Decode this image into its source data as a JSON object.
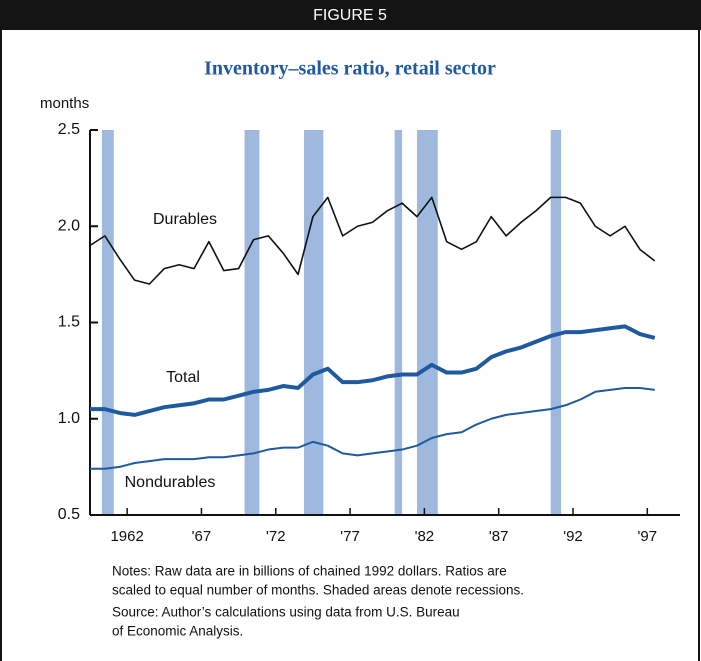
{
  "chart_data": {
    "type": "line",
    "header": "FIGURE 5",
    "title": "Inventory–sales ratio, retail sector",
    "y_label": "months",
    "x": [
      1959.5,
      1960.5,
      1961.5,
      1962.5,
      1963.5,
      1964.5,
      1965.5,
      1966.5,
      1967.5,
      1968.5,
      1969.5,
      1970.5,
      1971.5,
      1972.5,
      1973.5,
      1974.5,
      1975.5,
      1976.5,
      1977.5,
      1978.5,
      1979.5,
      1980.5,
      1981.5,
      1982.5,
      1983.5,
      1984.5,
      1985.5,
      1986.5,
      1987.5,
      1988.5,
      1989.5,
      1990.5,
      1991.5,
      1992.5,
      1993.5,
      1994.5,
      1995.5,
      1996.5,
      1997.5
    ],
    "series": [
      {
        "name": "Durables",
        "color": "#111111",
        "width": 1.6,
        "values": [
          1.9,
          1.95,
          1.83,
          1.72,
          1.7,
          1.78,
          1.8,
          1.78,
          1.92,
          1.77,
          1.78,
          1.93,
          1.95,
          1.86,
          1.75,
          2.05,
          2.15,
          1.95,
          2.0,
          2.02,
          2.08,
          2.12,
          2.05,
          2.15,
          1.92,
          1.88,
          1.92,
          2.05,
          1.95,
          2.02,
          2.08,
          2.15,
          2.15,
          2.12,
          2.0,
          1.95,
          2.0,
          1.88,
          1.82
        ]
      },
      {
        "name": "Total",
        "color": "#1f5a9e",
        "width": 4,
        "values": [
          1.05,
          1.05,
          1.03,
          1.02,
          1.04,
          1.06,
          1.07,
          1.08,
          1.1,
          1.1,
          1.12,
          1.14,
          1.15,
          1.17,
          1.16,
          1.23,
          1.26,
          1.19,
          1.19,
          1.2,
          1.22,
          1.23,
          1.23,
          1.28,
          1.24,
          1.24,
          1.26,
          1.32,
          1.35,
          1.37,
          1.4,
          1.43,
          1.45,
          1.45,
          1.46,
          1.47,
          1.48,
          1.44,
          1.42
        ]
      },
      {
        "name": "Nondurables",
        "color": "#1f5a9e",
        "width": 2,
        "values": [
          0.74,
          0.74,
          0.75,
          0.77,
          0.78,
          0.79,
          0.79,
          0.79,
          0.8,
          0.8,
          0.81,
          0.82,
          0.84,
          0.85,
          0.85,
          0.88,
          0.86,
          0.82,
          0.81,
          0.82,
          0.83,
          0.84,
          0.86,
          0.9,
          0.92,
          0.93,
          0.97,
          1.0,
          1.02,
          1.03,
          1.04,
          1.05,
          1.07,
          1.1,
          1.14,
          1.15,
          1.16,
          1.16,
          1.15
        ]
      }
    ],
    "recessions": [
      [
        1960.3,
        1961.1
      ],
      [
        1969.9,
        1970.9
      ],
      [
        1973.9,
        1975.2
      ],
      [
        1980.0,
        1980.5
      ],
      [
        1981.5,
        1982.9
      ],
      [
        1990.5,
        1991.2
      ]
    ],
    "recession_color": "#9fb9de",
    "xlim": [
      1959.5,
      1999.2
    ],
    "xticks": [
      1962,
      {
        "value": 1967,
        "label": "'67"
      },
      {
        "value": 1972,
        "label": "'72"
      },
      {
        "value": 1977,
        "label": "'77"
      },
      {
        "value": 1982,
        "label": "'82"
      },
      {
        "value": 1987,
        "label": "'87"
      },
      {
        "value": 1992,
        "label": "'92"
      },
      {
        "value": 1997,
        "label": "'97"
      }
    ],
    "ylim": [
      0.5,
      2.5
    ],
    "yticks": [
      0.5,
      {
        "value": 1,
        "label": "1.0"
      },
      1.5,
      {
        "value": 2,
        "label": "2.0"
      },
      2.5
    ],
    "grid": false,
    "notes": [
      "Notes: Raw data are in billions of chained 1992 dollars. Ratios are",
      "scaled to equal number of months. Shaded areas denote recessions.",
      "Source: Author’s calculations using data from U.S. Bureau",
      "of Economic Analysis."
    ]
  }
}
